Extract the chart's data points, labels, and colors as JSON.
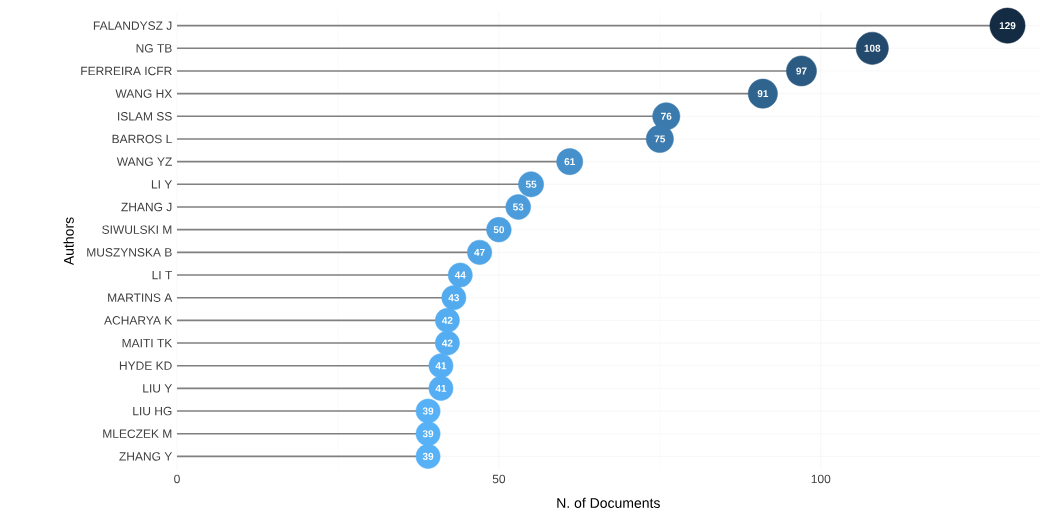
{
  "chart_data": {
    "type": "lollipop",
    "orientation": "horizontal",
    "xlabel": "N. of Documents",
    "ylabel": "Authors",
    "categories": [
      "FALANDYSZ J",
      "NG TB",
      "FERREIRA ICFR",
      "WANG HX",
      "ISLAM SS",
      "BARROS L",
      "WANG YZ",
      "LI Y",
      "ZHANG J",
      "SIWULSKI M",
      "MUSZYNSKA B",
      "LI T",
      "MARTINS A",
      "ACHARYA K",
      "MAITI TK",
      "HYDE KD",
      "LIU Y",
      "LIU HG",
      "MLECZEK M",
      "ZHANG Y"
    ],
    "values": [
      129,
      108,
      97,
      91,
      76,
      75,
      61,
      55,
      53,
      50,
      47,
      44,
      43,
      42,
      42,
      41,
      41,
      39,
      39,
      39
    ],
    "colors": [
      "#132b43",
      "#234a6d",
      "#2b5b83",
      "#2f648f",
      "#3a7aad",
      "#3b7baf",
      "#4690cb",
      "#4a99d7",
      "#4c9cdb",
      "#4ea1e1",
      "#50a5e7",
      "#52aaed",
      "#53abef",
      "#54adf1",
      "#54adf1",
      "#55aef3",
      "#55aef3",
      "#56b1f7",
      "#56b1f7",
      "#56b1f7"
    ],
    "sizes": [
      1,
      0.84,
      0.73,
      0.69,
      0.6,
      0.6,
      0.55,
      0.51,
      0.5,
      0.49,
      0.48,
      0.47,
      0.47,
      0.47,
      0.47,
      0.47,
      0.47,
      0.47,
      0.47,
      0.47
    ],
    "value_labels": [
      "129",
      "108",
      "97",
      "91",
      "76",
      "75",
      "61",
      "55",
      "53",
      "50",
      "47",
      "44",
      "43",
      "42",
      "42",
      "41",
      "41",
      "39",
      "39",
      "39"
    ],
    "xlim": [
      0,
      134
    ],
    "xticks": [
      0,
      50,
      100
    ],
    "grid": true,
    "marker": "circle"
  }
}
